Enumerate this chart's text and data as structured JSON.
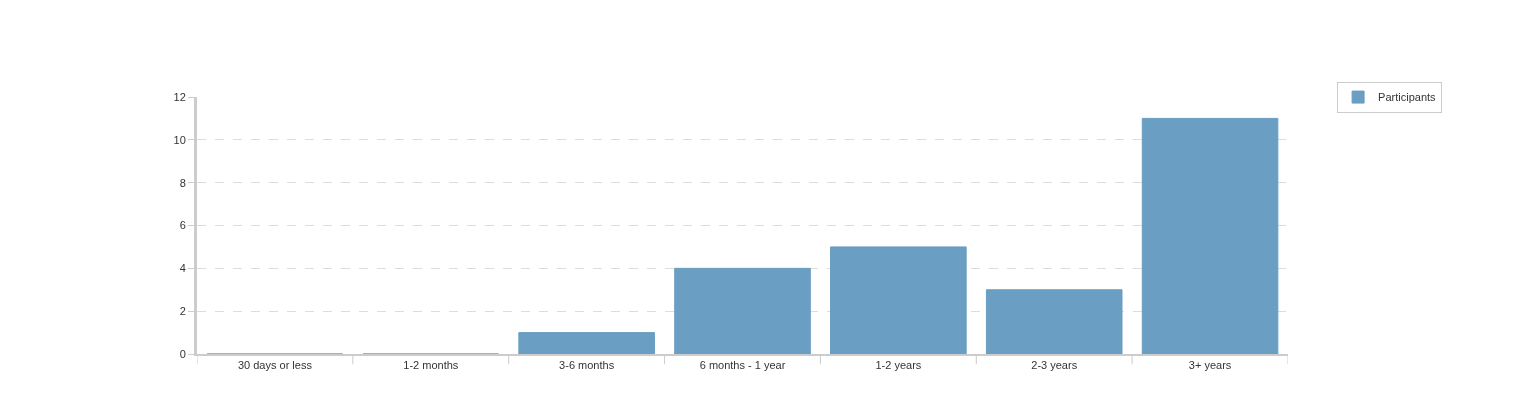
{
  "chart_data": {
    "type": "bar",
    "categories": [
      "30 days or less",
      "1-2 months",
      "3-6 months",
      "6 months - 1 year",
      "1-2 years",
      "2-3 years",
      "3+ years"
    ],
    "series": [
      {
        "name": "Participants",
        "color": "#6a9ec2",
        "values": [
          0,
          0,
          1,
          4,
          5,
          3,
          11
        ]
      }
    ],
    "ylim": [
      0,
      12
    ],
    "yticks": [
      0,
      2,
      4,
      6,
      8,
      10,
      12
    ],
    "grid": "y",
    "legend": "top right"
  }
}
